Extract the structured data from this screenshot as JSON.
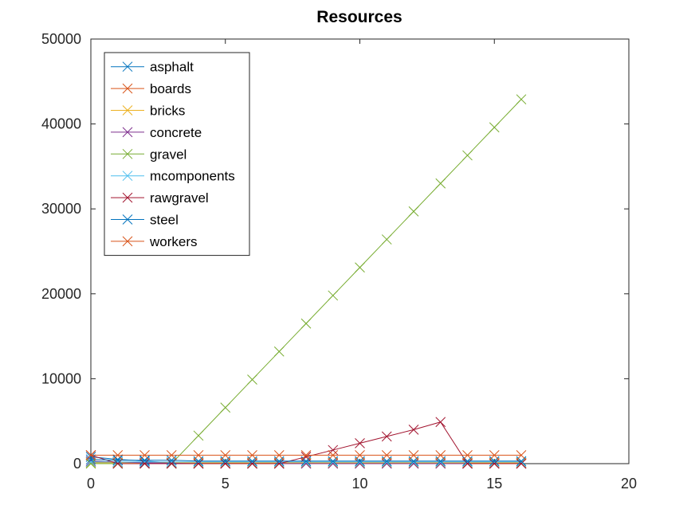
{
  "chart_data": {
    "type": "line",
    "title": "Resources",
    "xlabel": "",
    "ylabel": "",
    "xlim": [
      0,
      20
    ],
    "ylim": [
      0,
      50000
    ],
    "xticks": [
      0,
      5,
      10,
      15,
      20
    ],
    "yticks": [
      0,
      10000,
      20000,
      30000,
      40000,
      50000
    ],
    "grid": false,
    "legend_position": "top-left",
    "marker": "x",
    "x": [
      0,
      1,
      2,
      3,
      4,
      5,
      6,
      7,
      8,
      9,
      10,
      11,
      12,
      13,
      14,
      15,
      16
    ],
    "series": [
      {
        "name": "asphalt",
        "color": "#0072bd",
        "values": [
          800,
          500,
          300,
          100,
          50,
          50,
          50,
          50,
          50,
          50,
          50,
          50,
          50,
          50,
          50,
          50,
          50
        ]
      },
      {
        "name": "boards",
        "color": "#d95319",
        "values": [
          200,
          150,
          100,
          80,
          50,
          50,
          50,
          50,
          50,
          50,
          50,
          50,
          50,
          50,
          50,
          50,
          50
        ]
      },
      {
        "name": "bricks",
        "color": "#edb120",
        "values": [
          100,
          100,
          100,
          100,
          100,
          100,
          100,
          100,
          100,
          100,
          100,
          100,
          100,
          100,
          100,
          100,
          100
        ]
      },
      {
        "name": "concrete",
        "color": "#7e2f8e",
        "values": [
          300,
          200,
          100,
          50,
          0,
          0,
          0,
          0,
          0,
          0,
          0,
          0,
          0,
          0,
          0,
          0,
          0
        ]
      },
      {
        "name": "gravel",
        "color": "#77ac30",
        "values": [
          0,
          0,
          0,
          0,
          3300,
          6600,
          9900,
          13200,
          16500,
          19800,
          23100,
          26400,
          29700,
          33000,
          36300,
          39600,
          42900
        ]
      },
      {
        "name": "mcomponents",
        "color": "#4dbeee",
        "values": [
          200,
          200,
          200,
          200,
          200,
          200,
          200,
          200,
          200,
          200,
          200,
          200,
          200,
          200,
          200,
          200,
          200
        ]
      },
      {
        "name": "rawgravel",
        "color": "#a2142f",
        "values": [
          1000,
          0,
          0,
          0,
          0,
          0,
          0,
          0,
          800,
          1600,
          2400,
          3200,
          4000,
          4900,
          0,
          0,
          0
        ]
      },
      {
        "name": "steel",
        "color": "#0072bd",
        "values": [
          500,
          400,
          400,
          400,
          300,
          300,
          300,
          300,
          300,
          300,
          300,
          300,
          300,
          300,
          300,
          300,
          300
        ]
      },
      {
        "name": "workers",
        "color": "#d95319",
        "values": [
          1000,
          1000,
          1000,
          1000,
          1000,
          1000,
          1000,
          1000,
          1000,
          1000,
          1000,
          1000,
          1000,
          1000,
          1000,
          1000,
          1000
        ]
      }
    ]
  }
}
